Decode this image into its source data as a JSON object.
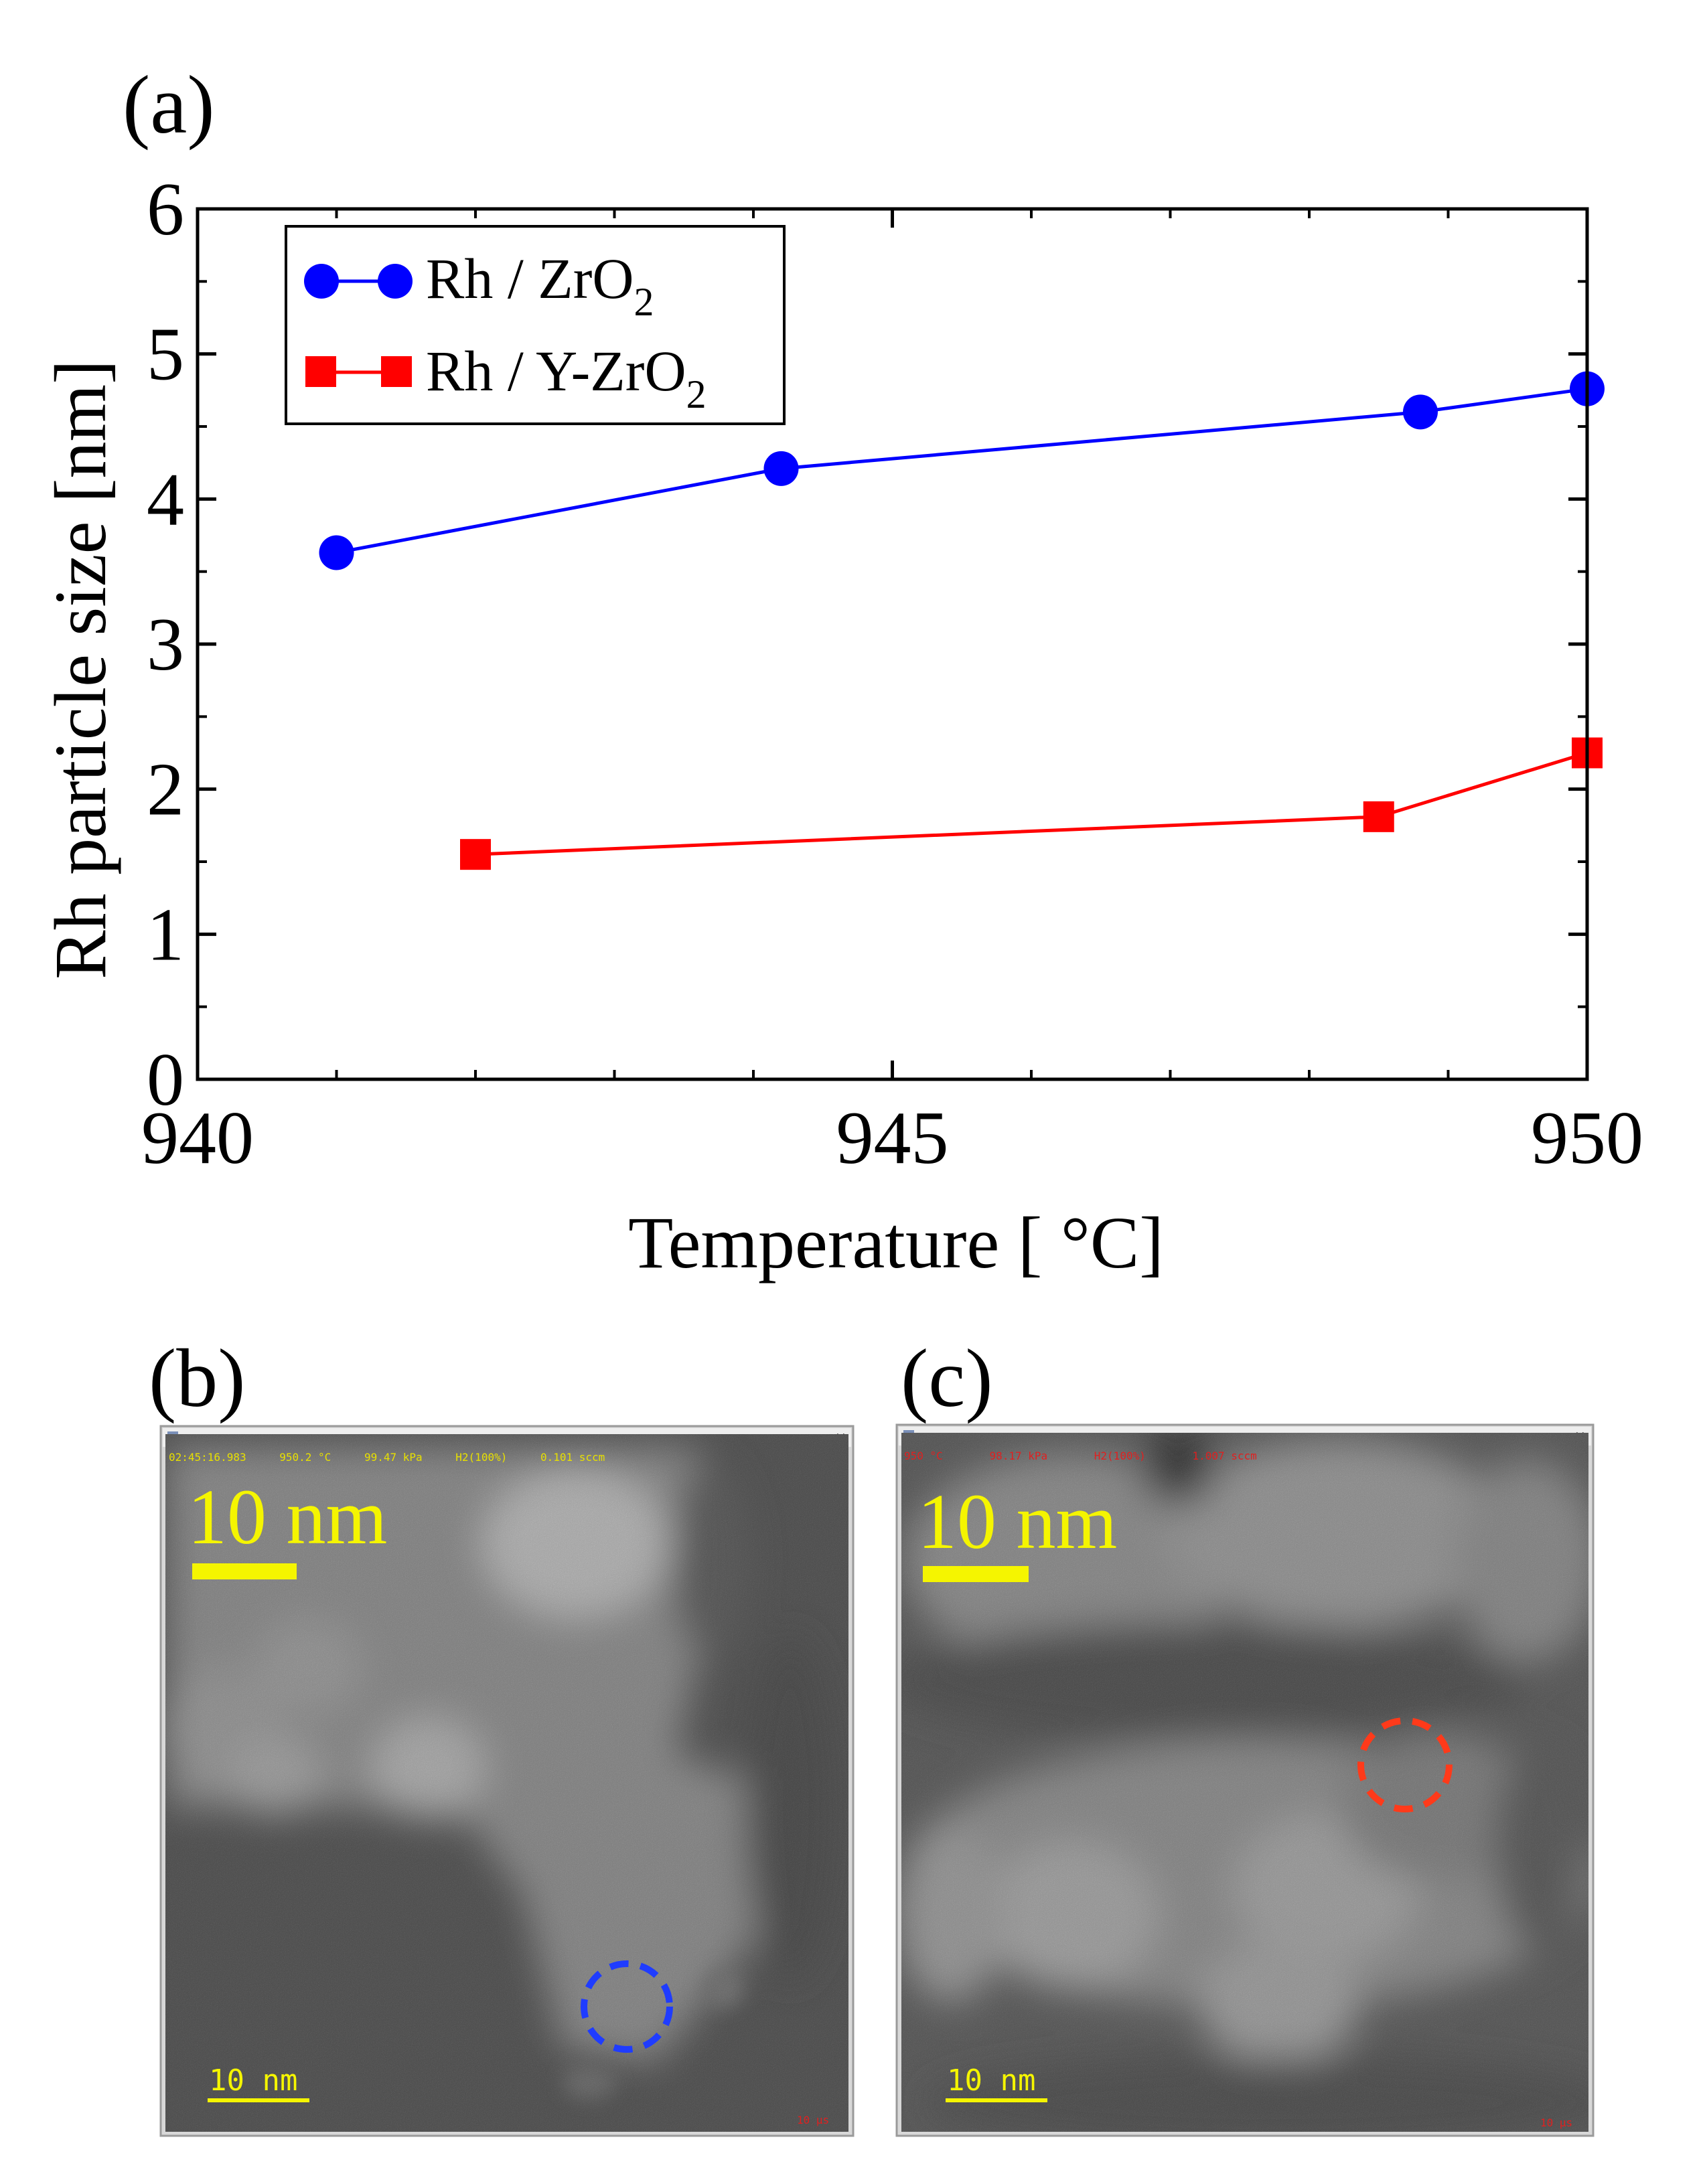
{
  "panels": {
    "a": {
      "label": "(a)"
    },
    "b": {
      "label": "(b)",
      "scale_label": "10 nm",
      "inner_scale_label": "10 nm",
      "status": [
        "02:45:16.983",
        "950.2 °C",
        "99.47 kPa",
        "H2(100%)",
        "0.101 sccm"
      ],
      "corner_text": "10 μs",
      "circle_color": "#1f3cff"
    },
    "c": {
      "label": "(c)",
      "scale_label": "10 nm",
      "inner_scale_label": "10 nm",
      "status": [
        "950 °C",
        "98.17 kPa",
        "H2(100%)",
        "1.007 sccm"
      ],
      "corner_text": "10 μs",
      "circle_color": "#ff3a1a"
    }
  },
  "chart_data": {
    "type": "line",
    "title": "",
    "xlabel": "Temperature [ °C]",
    "ylabel": "Rh particle size [nm]",
    "xlim": [
      940,
      950
    ],
    "ylim": [
      0,
      6
    ],
    "x_ticks": [
      940,
      945,
      950
    ],
    "y_ticks": [
      0,
      1,
      2,
      3,
      4,
      5,
      6
    ],
    "x_minor_step": 1,
    "y_minor_step": 0.5,
    "grid": false,
    "legend_position": "top-left",
    "series": [
      {
        "name": "Rh / ZrO2",
        "name_main": "Rh / ZrO",
        "name_sub": "2",
        "color": "#0000ff",
        "marker": "circle",
        "x": [
          941.0,
          944.2,
          948.8,
          950.0
        ],
        "y": [
          3.63,
          4.21,
          4.6,
          4.76
        ]
      },
      {
        "name": "Rh / Y-ZrO2",
        "name_main": "Rh / Y-ZrO",
        "name_sub": "2",
        "color": "#ff0000",
        "marker": "square",
        "x": [
          942.0,
          948.5,
          950.0
        ],
        "y": [
          1.55,
          1.81,
          2.25
        ]
      }
    ]
  }
}
